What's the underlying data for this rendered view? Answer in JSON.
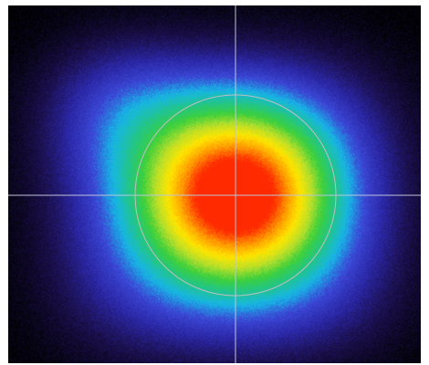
{
  "image": {
    "subject": "laser-beam-profile",
    "colormap": [
      "#000000",
      "#1a0f4a",
      "#2b27a6",
      "#3b47d6",
      "#17b6e6",
      "#22c58b",
      "#3cd03c",
      "#b8df2a",
      "#ffe600",
      "#ff9a00",
      "#ff2a00"
    ],
    "crosshair_color": "#bfc4d8",
    "circle_color": "#bfbfbf",
    "background_color": "#000000"
  }
}
